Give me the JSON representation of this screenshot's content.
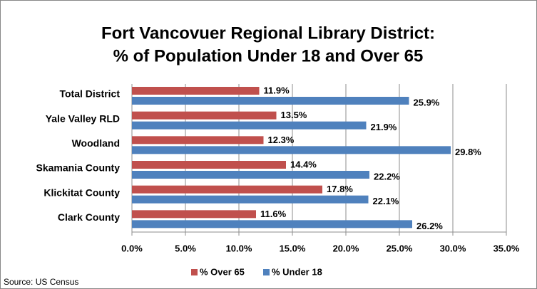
{
  "chart_data": {
    "type": "bar",
    "orientation": "horizontal",
    "title": [
      "Fort Vancovuer Regional Library District:",
      "% of Population Under 18 and Over 65"
    ],
    "categories": [
      "Total District",
      "Yale Valley RLD",
      "Woodland",
      "Skamania County",
      "Klickitat County",
      "Clark County"
    ],
    "series": [
      {
        "name": "% Over 65",
        "color": "#c0504d",
        "values": [
          11.9,
          13.5,
          12.3,
          14.4,
          17.8,
          11.6
        ],
        "value_labels": [
          "11.9%",
          "13.5%",
          "12.3%",
          "14.4%",
          "17.8%",
          "11.6%"
        ]
      },
      {
        "name": "% Under 18",
        "color": "#4f81bd",
        "values": [
          25.9,
          21.9,
          29.8,
          22.2,
          22.1,
          26.2
        ],
        "value_labels": [
          "25.9%",
          "21.9%",
          "29.8%",
          "22.2%",
          "22.1%",
          "26.2%"
        ]
      }
    ],
    "xlim": [
      0,
      35
    ],
    "xticks": [
      {
        "value": 0,
        "label": "0.0%"
      },
      {
        "value": 5,
        "label": "5.0%"
      },
      {
        "value": 10,
        "label": "10.0%"
      },
      {
        "value": 15,
        "label": "15.0%"
      },
      {
        "value": 20,
        "label": "20.0%"
      },
      {
        "value": 25,
        "label": "25.0%"
      },
      {
        "value": 30,
        "label": "30.0%"
      },
      {
        "value": 35,
        "label": "35.0%"
      }
    ],
    "grid": true,
    "legend": "bottom",
    "note": "Source: US Census"
  }
}
